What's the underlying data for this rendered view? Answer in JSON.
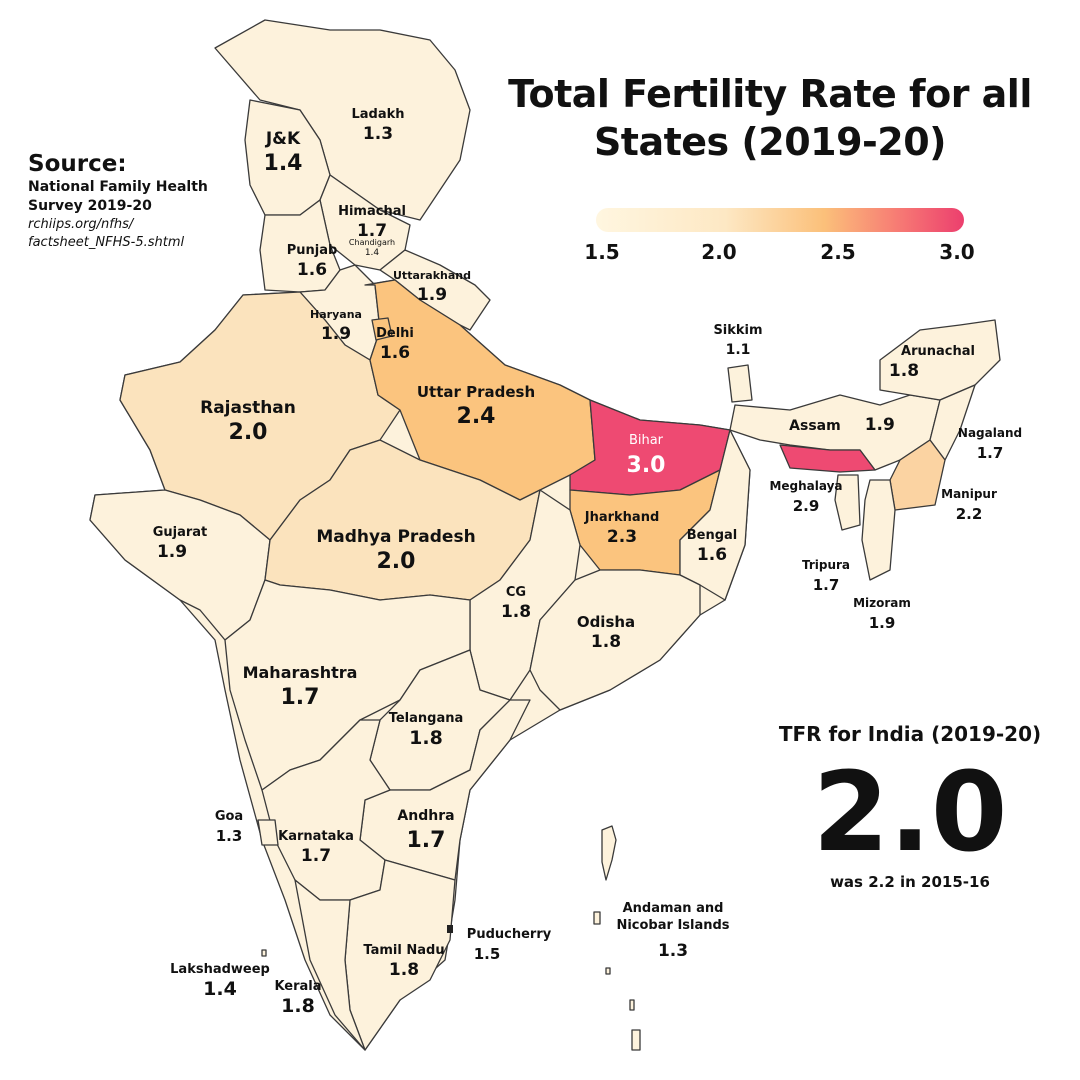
{
  "title": "Total Fertility Rate for all States (2019-20)",
  "source": {
    "heading": "Source:",
    "org": "National Family Health Survey 2019-20",
    "url": "rchiips.org/nfhs/ factsheet_NFHS-5.shtml"
  },
  "legend": {
    "ticks": [
      "1.5",
      "2.0",
      "2.5",
      "3.0"
    ],
    "scale_min": 1.5,
    "scale_max": 3.0,
    "colors": [
      "#fff6e0",
      "#fde8c4",
      "#fbc07a",
      "#f77b74",
      "#ec3f6e"
    ]
  },
  "colors": {
    "border": "#3a3a3a",
    "background": "#ffffff"
  },
  "states": [
    {
      "name": "Ladakh",
      "value": "1.3"
    },
    {
      "name": "J&K",
      "value": "1.4"
    },
    {
      "name": "Himachal",
      "value": "1.7"
    },
    {
      "name": "Chandigarh",
      "value": "1.4"
    },
    {
      "name": "Punjab",
      "value": "1.6"
    },
    {
      "name": "Uttarakhand",
      "value": "1.9"
    },
    {
      "name": "Haryana",
      "value": "1.9"
    },
    {
      "name": "Delhi",
      "value": "1.6"
    },
    {
      "name": "Rajasthan",
      "value": "2.0"
    },
    {
      "name": "Uttar Pradesh",
      "value": "2.4"
    },
    {
      "name": "Bihar",
      "value": "3.0"
    },
    {
      "name": "Sikkim",
      "value": "1.1"
    },
    {
      "name": "Arunachal",
      "value": "1.8"
    },
    {
      "name": "Assam",
      "value": "1.9"
    },
    {
      "name": "Nagaland",
      "value": "1.7"
    },
    {
      "name": "Meghalaya",
      "value": "2.9"
    },
    {
      "name": "Manipur",
      "value": "2.2"
    },
    {
      "name": "Tripura",
      "value": "1.7"
    },
    {
      "name": "Mizoram",
      "value": "1.9"
    },
    {
      "name": "Gujarat",
      "value": "1.9"
    },
    {
      "name": "Madhya Pradesh",
      "value": "2.0"
    },
    {
      "name": "Jharkhand",
      "value": "2.3"
    },
    {
      "name": "Bengal",
      "value": "1.6"
    },
    {
      "name": "CG",
      "value": "1.8"
    },
    {
      "name": "Odisha",
      "value": "1.8"
    },
    {
      "name": "Maharashtra",
      "value": "1.7"
    },
    {
      "name": "Telangana",
      "value": "1.8"
    },
    {
      "name": "Goa",
      "value": "1.3"
    },
    {
      "name": "Karnataka",
      "value": "1.7"
    },
    {
      "name": "Andhra",
      "value": "1.7"
    },
    {
      "name": "Puducherry",
      "value": "1.5"
    },
    {
      "name": "Andaman and Nicobar Islands",
      "value": "1.3"
    },
    {
      "name": "Tamil Nadu",
      "value": "1.8"
    },
    {
      "name": "Lakshadweep",
      "value": "1.4"
    },
    {
      "name": "Kerala",
      "value": "1.8"
    }
  ],
  "india": {
    "caption": "TFR for India (2019-20)",
    "value": "2.0",
    "note": "was 2.2 in 2015-16"
  }
}
